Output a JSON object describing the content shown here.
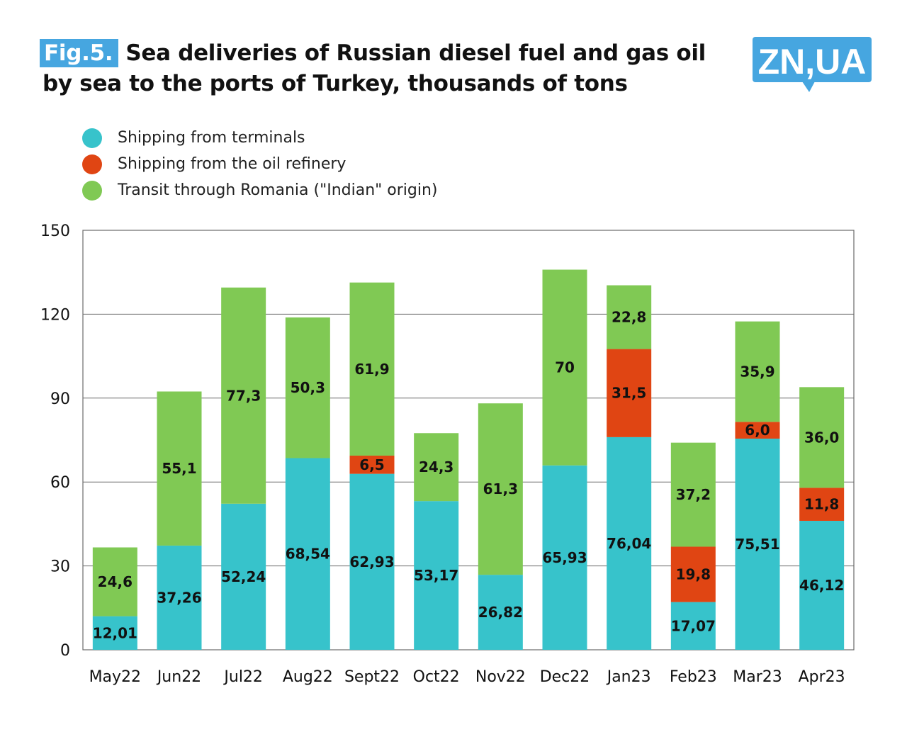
{
  "header": {
    "fig_label": "Fig.5.",
    "title_line1": "Sea deliveries of Russian diesel fuel and gas oil",
    "title_line2": "by sea to the ports of Turkey, thousands of tons",
    "logo_text": "ZN,UA"
  },
  "legend": {
    "terminals": "Shipping from terminals",
    "refinery": "Shipping from the oil refinery",
    "transit": "Transit through Romania (\"Indian\" origin)"
  },
  "colors": {
    "terminals": "#37c3cb",
    "refinery": "#e04513",
    "transit": "#80c954",
    "accent": "#46a6e0"
  },
  "chart_data": {
    "type": "bar",
    "stacked": true,
    "title": "Sea deliveries of Russian diesel fuel and gas oil by sea to the ports of Turkey, thousands of tons",
    "categories": [
      "May22",
      "Jun22",
      "Jul22",
      "Aug22",
      "Sept22",
      "Oct22",
      "Nov22",
      "Dec22",
      "Jan23",
      "Feb23",
      "Mar23",
      "Apr23"
    ],
    "series": [
      {
        "name": "Shipping from terminals",
        "key": "terminals",
        "values": [
          12.01,
          37.26,
          52.24,
          68.54,
          62.93,
          53.17,
          26.82,
          65.93,
          76.04,
          17.07,
          75.51,
          46.12
        ],
        "labels": [
          "12,01",
          "37,26",
          "52,24",
          "68,54",
          "62,93",
          "53,17",
          "26,82",
          "65,93",
          "76,04",
          "17,07",
          "75,51",
          "46,12"
        ]
      },
      {
        "name": "Shipping from the oil refinery",
        "key": "refinery",
        "values": [
          0,
          0,
          0,
          0,
          6.5,
          0,
          0,
          0,
          31.5,
          19.8,
          6.0,
          11.8
        ],
        "labels": [
          "",
          "",
          "",
          "",
          "6,5",
          "",
          "",
          "",
          "31,5",
          "19,8",
          "6,0",
          "11,8"
        ]
      },
      {
        "name": "Transit through Romania (\"Indian\" origin)",
        "key": "transit",
        "values": [
          24.6,
          55.1,
          77.3,
          50.3,
          61.9,
          24.3,
          61.3,
          70,
          22.8,
          37.2,
          35.9,
          36.0
        ],
        "labels": [
          "24,6",
          "55,1",
          "77,3",
          "50,3",
          "61,9",
          "24,3",
          "61,3",
          "70",
          "22,8",
          "37,2",
          "35,9",
          "36,0"
        ]
      }
    ],
    "yticks": [
      0,
      30,
      60,
      90,
      120,
      150
    ],
    "ylim": [
      0,
      150
    ],
    "grid": true,
    "legend_position": "top-left",
    "xlabel": "",
    "ylabel": ""
  }
}
